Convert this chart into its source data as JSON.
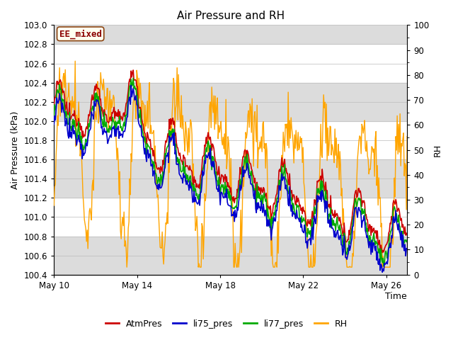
{
  "title": "Air Pressure and RH",
  "ylabel_left": "Air Pressure (kPa)",
  "ylabel_right": "RH",
  "xlabel": "Time",
  "ylim_left": [
    100.4,
    103.0
  ],
  "ylim_right": [
    0,
    100
  ],
  "yticks_left": [
    100.4,
    100.6,
    100.8,
    101.0,
    101.2,
    101.4,
    101.6,
    101.8,
    102.0,
    102.2,
    102.4,
    102.6,
    102.8,
    103.0
  ],
  "yticks_right": [
    0,
    10,
    20,
    30,
    40,
    50,
    60,
    70,
    80,
    90,
    100
  ],
  "xtick_labels": [
    "May 10",
    "May 14",
    "May 18",
    "May 22",
    "May 26"
  ],
  "xtick_positions": [
    0,
    4,
    8,
    12,
    16
  ],
  "annotation_text": "EE_mixed",
  "annotation_color": "#8B0000",
  "annotation_bg": "#FFFFF0",
  "annotation_border": "#8B4513",
  "colors": {
    "AtmPres": "#CC0000",
    "li75_pres": "#0000CC",
    "li77_pres": "#00AA00",
    "RH": "#FFA500"
  },
  "legend_labels": [
    "AtmPres",
    "li75_pres",
    "li77_pres",
    "RH"
  ],
  "bg_band_color": "#DCDCDC",
  "title_fontsize": 11,
  "label_fontsize": 9,
  "tick_fontsize": 8.5
}
